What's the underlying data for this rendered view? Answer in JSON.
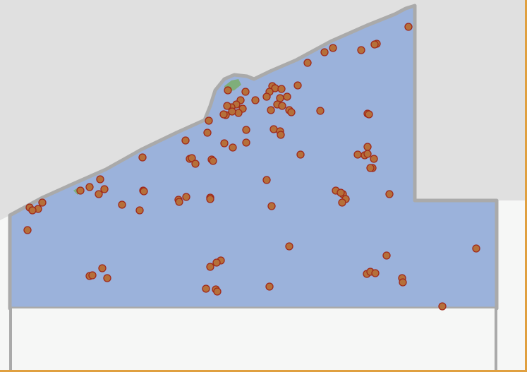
{
  "map": {
    "colors": {
      "background": "#f6f7f6",
      "lake": "#e0e0e0",
      "region_fill": "#9bb2db",
      "region_border": "#aaaaaa",
      "point_fill": "#b5703a",
      "point_stroke": "#a0281a",
      "park": "#7fae7a",
      "frame": "#e0a040"
    },
    "markers": {
      "count": 122,
      "shape": "circle"
    }
  }
}
